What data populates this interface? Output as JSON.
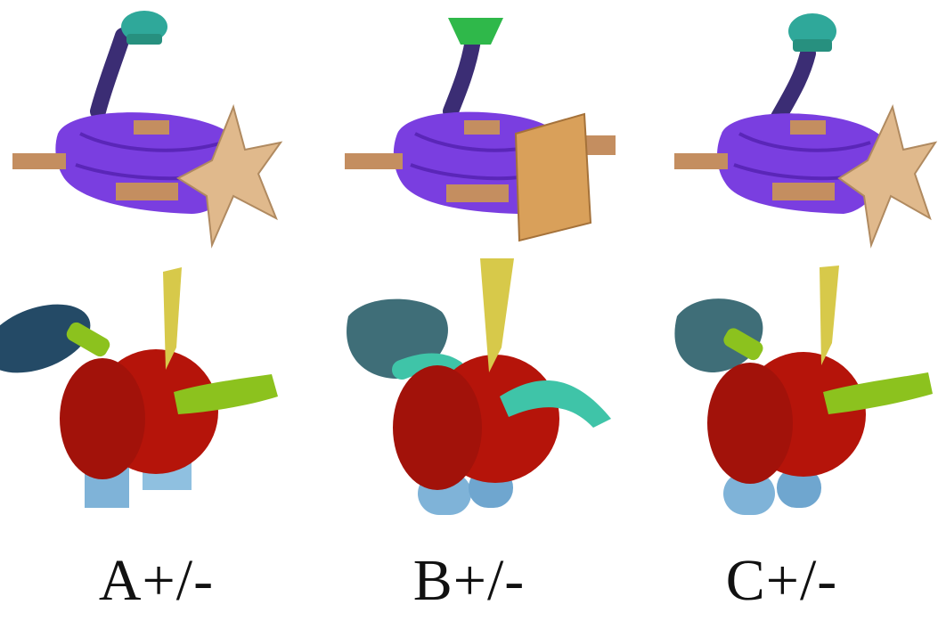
{
  "captions": {
    "a": "A+/-",
    "b": "B+/-",
    "c": "C+/-"
  },
  "colors": {
    "teal_cap": "#2fa89a",
    "green_cap": "#2fb84a",
    "neck": "#4a3a8a",
    "body_purple": "#7a3ee0",
    "wood": "#d9a872",
    "wood_dark": "#b07a48",
    "tan_star": "#e0b98c",
    "red_body": "#b5140a",
    "navy_disc": "#244a66",
    "slate_gear": "#3f6e78",
    "lime_arm": "#8cc21e",
    "mint_arm": "#3fc4a8",
    "yellow_horn": "#d7c94a",
    "leg_blue": "#7fb3d8"
  }
}
